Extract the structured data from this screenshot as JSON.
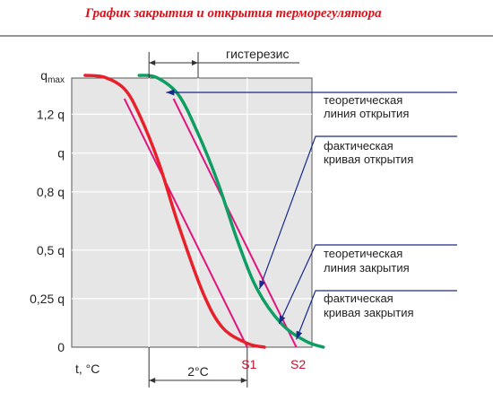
{
  "title": "График закрытия и открытия терморегулятора",
  "chart_data": {
    "type": "line",
    "title": "График закрытия и открытия терморегулятора",
    "xlabel": "t, °C",
    "ylabel": "",
    "grid": true,
    "y_ticks": [
      {
        "label": "q",
        "sub": "max",
        "value": 1.4
      },
      {
        "label": "1,2 q",
        "value": 1.2
      },
      {
        "label": "q",
        "value": 1.0
      },
      {
        "label": "0,8 q",
        "value": 0.8
      },
      {
        "label": "0,5 q",
        "value": 0.5
      },
      {
        "label": "0,25 q",
        "value": 0.25
      },
      {
        "label": "0",
        "value": 0
      }
    ],
    "x_markers": [
      {
        "label": "S1",
        "value": 7.0
      },
      {
        "label": "S2",
        "value": 9.0
      }
    ],
    "dimensions": {
      "hysteresis": {
        "label": "гистерезис",
        "from": 3.0,
        "to": 5.0
      },
      "delta": {
        "label": "2°C",
        "from": 3.0,
        "to": 7.0
      }
    },
    "series": [
      {
        "name": "фактическая кривая закрытия",
        "color": "#e8202a",
        "points": [
          [
            0.4,
            1.4
          ],
          [
            1.2,
            1.39
          ],
          [
            2.0,
            1.33
          ],
          [
            2.6,
            1.2
          ],
          [
            3.4,
            0.95
          ],
          [
            4.2,
            0.63
          ],
          [
            5.2,
            0.28
          ],
          [
            6.0,
            0.1
          ],
          [
            7.0,
            0.02
          ],
          [
            7.7,
            0.0
          ]
        ]
      },
      {
        "name": "фактическая кривая открытия",
        "color": "#0e9e63",
        "points": [
          [
            2.6,
            1.4
          ],
          [
            3.3,
            1.39
          ],
          [
            4.2,
            1.3
          ],
          [
            5.0,
            1.1
          ],
          [
            5.8,
            0.85
          ],
          [
            6.6,
            0.55
          ],
          [
            7.4,
            0.3
          ],
          [
            8.4,
            0.12
          ],
          [
            9.4,
            0.03
          ],
          [
            10.1,
            0.0
          ]
        ]
      },
      {
        "name": "теоретическая линия закрытия",
        "color": "#e0147e",
        "points": [
          [
            2.0,
            1.28
          ],
          [
            7.0,
            0.0
          ]
        ]
      },
      {
        "name": "теоретическая линия открытия",
        "color": "#e0147e",
        "points": [
          [
            4.0,
            1.28
          ],
          [
            9.0,
            0.0
          ]
        ]
      }
    ],
    "legend_items": [
      {
        "text1": "теоретическая",
        "text2": "линия открытия"
      },
      {
        "text1": "фактическая",
        "text2": "кривая открытия"
      },
      {
        "text1": "теоретическая",
        "text2": "линия закрытия"
      },
      {
        "text1": "фактическая",
        "text2": "кривая закрытия"
      }
    ]
  }
}
